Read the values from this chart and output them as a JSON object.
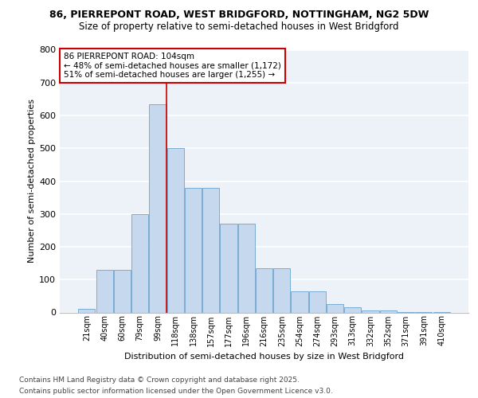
{
  "title1": "86, PIERREPONT ROAD, WEST BRIDGFORD, NOTTINGHAM, NG2 5DW",
  "title2": "Size of property relative to semi-detached houses in West Bridgford",
  "xlabel": "Distribution of semi-detached houses by size in West Bridgford",
  "ylabel": "Number of semi-detached properties",
  "categories": [
    "21sqm",
    "40sqm",
    "60sqm",
    "79sqm",
    "99sqm",
    "118sqm",
    "138sqm",
    "157sqm",
    "177sqm",
    "196sqm",
    "216sqm",
    "235sqm",
    "254sqm",
    "274sqm",
    "293sqm",
    "313sqm",
    "332sqm",
    "352sqm",
    "371sqm",
    "391sqm",
    "410sqm"
  ],
  "values": [
    10,
    130,
    130,
    300,
    635,
    500,
    380,
    380,
    270,
    270,
    135,
    135,
    65,
    65,
    25,
    15,
    5,
    5,
    2,
    2,
    2
  ],
  "bar_color": "#c5d8ee",
  "bar_edge_color": "#7aadd4",
  "property_line_index": 4.5,
  "annotation_title": "86 PIERREPONT ROAD: 104sqm",
  "annotation_line1": "← 48% of semi-detached houses are smaller (1,172)",
  "annotation_line2": "51% of semi-detached houses are larger (1,255) →",
  "vline_color": "#cc0000",
  "annotation_box_edge": "#cc0000",
  "footer1": "Contains HM Land Registry data © Crown copyright and database right 2025.",
  "footer2": "Contains public sector information licensed under the Open Government Licence v3.0.",
  "ylim": [
    0,
    800
  ],
  "yticks": [
    0,
    100,
    200,
    300,
    400,
    500,
    600,
    700,
    800
  ],
  "background_color": "#edf2f8",
  "grid_color": "#ffffff"
}
